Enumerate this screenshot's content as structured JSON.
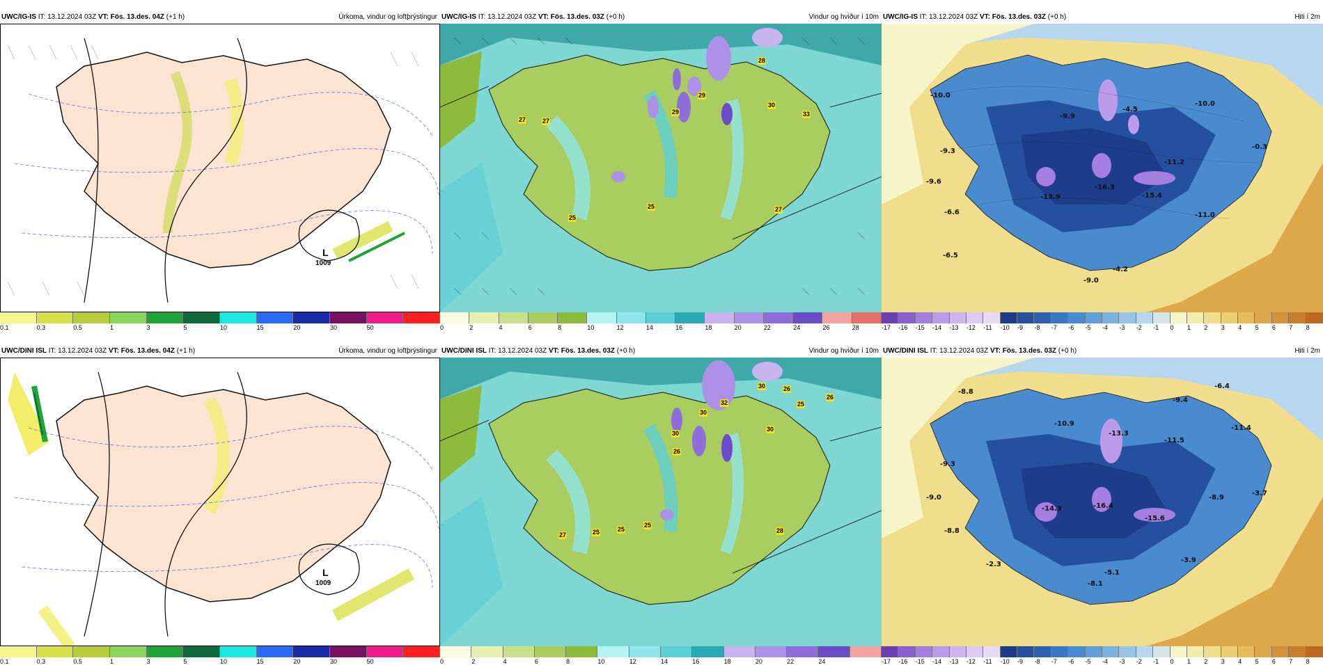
{
  "rows": [
    {
      "id": "ig-is",
      "panels": [
        {
          "model": "UWC/IG-IS",
          "it_label": "IT:",
          "it_value": "13.12.2024 03Z",
          "vt_label": "VT:",
          "vt_value": "Fös. 13.des. 04Z",
          "lead": "(+1 h)",
          "field": "Úrkoma, vindur og loftþrýstingur",
          "low_letter": "L",
          "low_value": "1009",
          "colorbar": {
            "labels": [
              "0.1",
              "0.3",
              "0.5",
              "1",
              "3",
              "5",
              "10",
              "15",
              "20",
              "30",
              "50"
            ],
            "colors": [
              "#f7f48c",
              "#d9e14a",
              "#b7cc3a",
              "#8bd45a",
              "#1fa43a",
              "#0e6c3a",
              "#19e9e0",
              "#2a6bff",
              "#1a2aa8",
              "#7a1160",
              "#f01a8a",
              "#ff1f1f"
            ]
          }
        },
        {
          "model": "UWC/IG-IS",
          "it_label": "IT:",
          "it_value": "13.12.2024 03Z",
          "vt_label": "VT:",
          "vt_value": "Fös. 13.des. 03Z",
          "lead": "(+0 h)",
          "field": "Vindur og hviður í 10m",
          "gusts": [
            "28",
            "29",
            "29",
            "30",
            "33",
            "27",
            "27",
            "25",
            "25",
            "27"
          ],
          "colorbar": {
            "labels": [
              "0",
              "2",
              "4",
              "6",
              "8",
              "10",
              "12",
              "14",
              "16",
              "18",
              "20",
              "22",
              "24",
              "26",
              "28"
            ],
            "colors": [
              "#fafbe0",
              "#e5f0b0",
              "#c8e08a",
              "#a9cd5f",
              "#8fbb3c",
              "#b6f4f4",
              "#8fe6ea",
              "#5ccfd6",
              "#2aaab5",
              "#c9b4f0",
              "#ad90e8",
              "#8f6edb",
              "#6b4cc8",
              "#f4a3a0",
              "#e4706a"
            ]
          }
        },
        {
          "model": "UWC/IG-IS",
          "it_label": "IT:",
          "it_value": "13.12.2024 03Z",
          "vt_label": "VT:",
          "vt_value": "Fös. 13.des. 03Z",
          "lead": "(+0 h)",
          "field": "Hiti í 2m",
          "temps": [
            "-10.0",
            "-9.9",
            "-4.5",
            "-10.0",
            "-0.3",
            "-9.3",
            "-11.2",
            "-9.6",
            "-16.3",
            "-13.9",
            "-15.4",
            "-6.6",
            "-11.0",
            "-6.5",
            "-4.2",
            "-9.0"
          ],
          "colorbar": {
            "labels": [
              "-17",
              "-16",
              "-15",
              "-14",
              "-13",
              "-12",
              "-11",
              "-10",
              "-9",
              "-8",
              "-7",
              "-6",
              "-5",
              "-4",
              "-3",
              "-2",
              "-1",
              "0",
              "1",
              "2",
              "3",
              "4",
              "5",
              "6",
              "7",
              "8"
            ],
            "colors": [
              "#6a3fb0",
              "#8a5fd0",
              "#a57fe0",
              "#bb9cea",
              "#cdb5f0",
              "#dccaf5",
              "#e7dbf8",
              "#1d3c8a",
              "#24509f",
              "#2d62b3",
              "#3977c3",
              "#4a8bd0",
              "#5f9edb",
              "#7bb2e3",
              "#99c4ea",
              "#b7d6ef",
              "#d3e6e8",
              "#f6f5c8",
              "#f4ecab",
              "#f0de8d",
              "#ebcf74",
              "#e5bd5d",
              "#dda84a",
              "#d4933b",
              "#c97d2e",
              "#bd6823"
            ]
          }
        }
      ]
    },
    {
      "id": "dini-isl",
      "panels": [
        {
          "model": "UWC/DINI ISL",
          "it_label": "IT:",
          "it_value": "13.12.2024 03Z",
          "vt_label": "VT:",
          "vt_value": "Fös. 13.des. 04Z",
          "lead": "(+1 h)",
          "field": "Úrkoma, vindur og loftþrýstingur",
          "low_letter": "L",
          "low_value": "1009",
          "colorbar": {
            "labels": [
              "0.1",
              "0.3",
              "0.5",
              "1",
              "3",
              "5",
              "10",
              "15",
              "20",
              "30",
              "50"
            ],
            "colors": [
              "#f7f48c",
              "#d9e14a",
              "#b7cc3a",
              "#8bd45a",
              "#1fa43a",
              "#0e6c3a",
              "#19e9e0",
              "#2a6bff",
              "#1a2aa8",
              "#7a1160",
              "#f01a8a",
              "#ff1f1f"
            ]
          }
        },
        {
          "model": "UWC/DINI ISL",
          "it_label": "IT:",
          "it_value": "13.12.2024 03Z",
          "vt_label": "VT:",
          "vt_value": "Fös. 13.des. 03Z",
          "lead": "(+0 h)",
          "field": "Vindur og hviður í 10m",
          "gusts": [
            "30",
            "26",
            "26",
            "25",
            "30",
            "32",
            "30",
            "30",
            "26",
            "27",
            "25",
            "25",
            "25",
            "28"
          ],
          "colorbar": {
            "labels": [
              "0",
              "2",
              "4",
              "6",
              "8",
              "10",
              "12",
              "14",
              "16",
              "18",
              "20",
              "22",
              "24"
            ],
            "colors": [
              "#fafbe0",
              "#e5f0b0",
              "#c8e08a",
              "#a9cd5f",
              "#8fbb3c",
              "#b6f4f4",
              "#8fe6ea",
              "#5ccfd6",
              "#2aaab5",
              "#c9b4f0",
              "#ad90e8",
              "#8f6edb",
              "#6b4cc8",
              "#f4a3a0"
            ]
          }
        },
        {
          "model": "UWC/DINI ISL",
          "it_label": "IT:",
          "it_value": "13.12.2024 03Z",
          "vt_label": "VT:",
          "vt_value": "Fös. 13.des. 03Z",
          "lead": "(+0 h)",
          "field": "Hiti í 2m",
          "temps": [
            "-8.8",
            "-6.4",
            "-9.4",
            "-10.9",
            "-13.3",
            "-11.5",
            "-11.4",
            "-9.3",
            "-9.0",
            "-14.3",
            "-16.4",
            "-15.6",
            "-8.9",
            "-3.7",
            "-8.8",
            "-2.3",
            "-5.1",
            "-3.9",
            "-8.1"
          ],
          "colorbar": {
            "labels": [
              "-17",
              "-16",
              "-15",
              "-14",
              "-13",
              "-12",
              "-11",
              "-10",
              "-9",
              "-8",
              "-7",
              "-6",
              "-5",
              "-4",
              "-3",
              "-2",
              "-1",
              "0",
              "1",
              "2",
              "3",
              "4",
              "5",
              "6",
              "7",
              "8"
            ],
            "colors": [
              "#6a3fb0",
              "#8a5fd0",
              "#a57fe0",
              "#bb9cea",
              "#cdb5f0",
              "#dccaf5",
              "#e7dbf8",
              "#1d3c8a",
              "#24509f",
              "#2d62b3",
              "#3977c3",
              "#4a8bd0",
              "#5f9edb",
              "#7bb2e3",
              "#99c4ea",
              "#b7d6ef",
              "#d3e6e8",
              "#f6f5c8",
              "#f4ecab",
              "#f0de8d",
              "#ebcf74",
              "#e5bd5d",
              "#dda84a",
              "#d4933b",
              "#c97d2e",
              "#bd6823"
            ]
          }
        }
      ]
    }
  ]
}
